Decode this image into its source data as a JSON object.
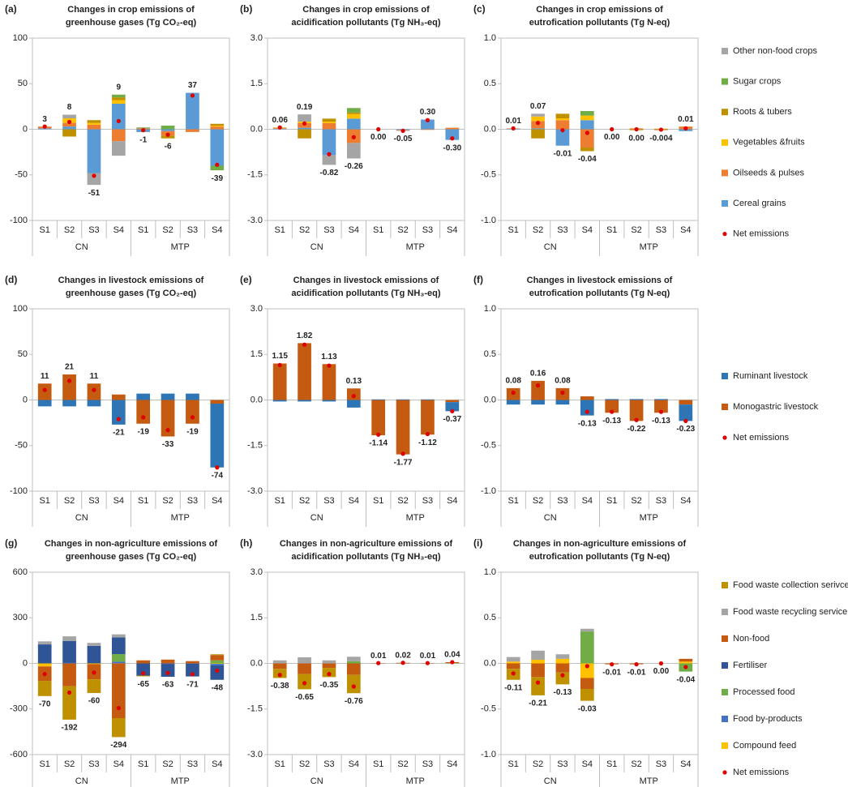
{
  "chart_data": [
    {
      "type": "bar",
      "series": [
        {
          "name": "Other non-food crops",
          "color": "#a5a5a5"
        },
        {
          "name": "Sugar crops",
          "color": "#70ad47"
        },
        {
          "name": "Roots & tubers",
          "color": "#bf9000"
        },
        {
          "name": "Vegetables &fruits",
          "color": "#ffc000"
        },
        {
          "name": "Oilseeds & pulses",
          "color": "#ed7d31"
        },
        {
          "name": "Cereal grains",
          "color": "#5b9bd5"
        }
      ],
      "net": {
        "name": "Net emissions",
        "color": "#e00000"
      },
      "panels": [
        {
          "label": "(a)",
          "title": [
            "Changes in crop emissions of",
            "greenhouse gases (Tg CO₂-eq)"
          ],
          "categories": [
            "S1",
            "S2",
            "S3",
            "S4",
            "S1",
            "S2",
            "S3",
            "S4"
          ],
          "groups": [
            "CN",
            "MTP"
          ],
          "ylim": [
            -100,
            100
          ],
          "yticks": [
            100,
            50,
            0,
            -50,
            -100
          ],
          "stacks": [
            [
              0,
              4,
              -13,
              -16,
              0,
              0,
              0,
              0
            ],
            [
              0,
              0,
              0,
              3,
              1,
              4,
              0,
              -5
            ],
            [
              0,
              -8,
              3,
              3,
              0,
              -3,
              0,
              2
            ],
            [
              0,
              5,
              2,
              4,
              0,
              0,
              0,
              1
            ],
            [
              2,
              4,
              5,
              -13,
              1,
              -5,
              -3,
              3
            ],
            [
              1,
              3,
              -48,
              28,
              -3,
              -2,
              40,
              -40
            ]
          ],
          "values": [
            3,
            8,
            -51,
            9,
            -1,
            -6,
            37,
            -39
          ]
        },
        {
          "label": "(b)",
          "title": [
            "Changes in crop emissions of",
            "acidification pollutants (Tg NH₃-eq)"
          ],
          "categories": [
            "S1",
            "S2",
            "S3",
            "S4",
            "S1",
            "S2",
            "S3",
            "S4"
          ],
          "groups": [
            "CN",
            "MTP"
          ],
          "ylim": [
            -3,
            3
          ],
          "yticks": [
            {
              "value": 3,
              "label": "3.0"
            },
            1.5,
            {
              "value": 0,
              "label": "0.0"
            },
            -1.5,
            {
              "value": -3,
              "label": "-3.0"
            }
          ],
          "stacks": [
            [
              0,
              0.24,
              -0.32,
              -0.51,
              0,
              0,
              0,
              0
            ],
            [
              0,
              0,
              0,
              0.15,
              0,
              0,
              0,
              0
            ],
            [
              0.01,
              -0.3,
              0.1,
              0.05,
              0,
              0,
              0,
              0
            ],
            [
              0.01,
              0.05,
              0.05,
              0.15,
              0,
              0,
              0,
              0
            ],
            [
              0.02,
              0.15,
              0.2,
              -0.45,
              0,
              -0.02,
              -0.02,
              0.05
            ],
            [
              0.02,
              0.05,
              -0.85,
              0.35,
              0,
              -0.03,
              0.32,
              -0.35
            ]
          ],
          "values": [
            0.06,
            0.19,
            -0.82,
            -0.26,
            0,
            -0.05,
            0.3,
            -0.3
          ],
          "value_labels": [
            "0.06",
            "0.19",
            "-0.82",
            "-0.26",
            "0.00",
            "-0.05",
            "0.30",
            "-0.30"
          ]
        },
        {
          "label": "(c)",
          "title": [
            "Changes in crop emissions of",
            "eutrofication pollutants (Tg N-eq)"
          ],
          "categories": [
            "S1",
            "S2",
            "S3",
            "S4",
            "S1",
            "S2",
            "S3",
            "S4"
          ],
          "groups": [
            "CN",
            "MTP"
          ],
          "ylim": [
            -1,
            1
          ],
          "yticks": [
            {
              "value": 1,
              "label": "1.0"
            },
            0.5,
            {
              "value": 0,
              "label": "0.0"
            },
            -0.5,
            {
              "value": -1,
              "label": "-1.0"
            }
          ],
          "stacks": [
            [
              0,
              0.03,
              0,
              0,
              0,
              0,
              0,
              0
            ],
            [
              0,
              0,
              0,
              0.05,
              0,
              0,
              0,
              0
            ],
            [
              0,
              -0.1,
              0.05,
              -0.04,
              0,
              -0.01,
              0.006,
              0
            ],
            [
              0,
              0.05,
              0.02,
              0.05,
              0,
              0,
              0,
              0
            ],
            [
              0.005,
              0.08,
              0.1,
              -0.2,
              0,
              0.01,
              -0.01,
              0.03
            ],
            [
              0.005,
              0.01,
              -0.18,
              0.1,
              0,
              0,
              0,
              -0.02
            ]
          ],
          "values": [
            0.01,
            0.07,
            -0.01,
            -0.04,
            0,
            0,
            -0.004,
            0.01
          ],
          "value_labels": [
            "0.01",
            "0.07",
            "-0.01",
            "-0.04",
            "0.00",
            "0.00",
            "-0.004",
            "0.01"
          ]
        }
      ]
    },
    {
      "type": "bar",
      "series": [
        {
          "name": "Ruminant livestock",
          "color": "#2e75b6"
        },
        {
          "name": "Monogastric livestock",
          "color": "#c55a11"
        }
      ],
      "net": {
        "name": "Net emissions",
        "color": "#e00000"
      },
      "panels": [
        {
          "label": "(d)",
          "title": [
            "Changes in livestock emissions of",
            "greenhouse gases (Tg CO₂-eq)"
          ],
          "categories": [
            "S1",
            "S2",
            "S3",
            "S4",
            "S1",
            "S2",
            "S3",
            "S4"
          ],
          "groups": [
            "CN",
            "MTP"
          ],
          "ylim": [
            -100,
            100
          ],
          "yticks": [
            100,
            50,
            0,
            -50,
            -100
          ],
          "stacks": [
            [
              -7,
              -7,
              -7,
              -27,
              7,
              7,
              7,
              -70
            ],
            [
              18,
              28,
              18,
              6,
              -26,
              -40,
              -26,
              -4
            ]
          ],
          "values": [
            11,
            21,
            11,
            -21,
            -19,
            -33,
            -19,
            -74
          ]
        },
        {
          "label": "(e)",
          "title": [
            "Changes in livestock emissions of",
            "acidification pollutants (Tg NH₃-eq)"
          ],
          "categories": [
            "S1",
            "S2",
            "S3",
            "S4",
            "S1",
            "S2",
            "S3",
            "S4"
          ],
          "groups": [
            "CN",
            "MTP"
          ],
          "ylim": [
            -3,
            3
          ],
          "yticks": [
            {
              "value": 3,
              "label": "3.0"
            },
            1.5,
            {
              "value": 0,
              "label": "0.0"
            },
            -1.5,
            {
              "value": -3,
              "label": "-3.0"
            }
          ],
          "stacks": [
            [
              -0.05,
              -0.05,
              -0.05,
              -0.25,
              0.02,
              0.02,
              0.02,
              -0.3
            ],
            [
              1.2,
              1.87,
              1.18,
              0.38,
              -1.16,
              -1.79,
              -1.14,
              -0.07
            ]
          ],
          "values": [
            1.15,
            1.82,
            1.13,
            0.13,
            -1.14,
            -1.77,
            -1.12,
            -0.37
          ]
        },
        {
          "label": "(f)",
          "title": [
            "Changes in livestock emissions of",
            "eutrofication pollutants (Tg N-eq)"
          ],
          "categories": [
            "S1",
            "S2",
            "S3",
            "S4",
            "S1",
            "S2",
            "S3",
            "S4"
          ],
          "groups": [
            "CN",
            "MTP"
          ],
          "ylim": [
            -1,
            1
          ],
          "yticks": [
            {
              "value": 1,
              "label": "1.0"
            },
            0.5,
            {
              "value": 0,
              "label": "0.0"
            },
            -0.5,
            {
              "value": -1,
              "label": "-1.0"
            }
          ],
          "stacks": [
            [
              -0.05,
              -0.05,
              -0.05,
              -0.17,
              0.01,
              0.01,
              0.01,
              -0.18
            ],
            [
              0.13,
              0.21,
              0.13,
              0.04,
              -0.14,
              -0.23,
              -0.14,
              -0.05
            ]
          ],
          "values": [
            0.08,
            0.16,
            0.08,
            -0.13,
            -0.13,
            -0.22,
            -0.13,
            -0.23
          ]
        }
      ]
    },
    {
      "type": "bar",
      "series": [
        {
          "name": "Food waste collection serivce",
          "color": "#bf9000"
        },
        {
          "name": "Food waste recycling service",
          "color": "#a5a5a5"
        },
        {
          "name": "Non-food",
          "color": "#c55a11"
        },
        {
          "name": "Fertiliser",
          "color": "#2f5597"
        },
        {
          "name": "Processed food",
          "color": "#70ad47"
        },
        {
          "name": "Food by-products",
          "color": "#4472c4"
        },
        {
          "name": "Compound feed",
          "color": "#ffc000"
        }
      ],
      "net": {
        "name": "Net emissions",
        "color": "#e00000"
      },
      "panels": [
        {
          "label": "(g)",
          "title": [
            "Changes in non-agriculture emissions of",
            "greenhouse gases (Tg CO₂-eq)"
          ],
          "categories": [
            "S1",
            "S2",
            "S3",
            "S4",
            "S1",
            "S2",
            "S3",
            "S4"
          ],
          "groups": [
            "CN",
            "MTP"
          ],
          "ylim": [
            -600,
            600
          ],
          "yticks": [
            600,
            300,
            0,
            -300,
            -600
          ],
          "stacks": [
            [
              -100,
              -220,
              -90,
              -125,
              -5,
              0,
              0,
              5
            ],
            [
              20,
              30,
              20,
              20,
              0,
              0,
              0,
              0
            ],
            [
              -95,
              -150,
              -100,
              -360,
              20,
              25,
              15,
              35
            ],
            [
              125,
              145,
              115,
              110,
              -80,
              -85,
              -85,
              -95
            ],
            [
              0,
              0,
              0,
              50,
              0,
              0,
              0,
              20
            ],
            [
              0,
              3,
              0,
              10,
              0,
              -3,
              -1,
              -10
            ],
            [
              -20,
              0,
              -5,
              1,
              0,
              0,
              0,
              -3
            ]
          ],
          "values": [
            -70,
            -192,
            -60,
            -294,
            -65,
            -63,
            -71,
            -48
          ]
        },
        {
          "label": "(h)",
          "title": [
            "Changes in non-agriculture emissions of",
            "acidification pollutants (Tg NH₃-eq)"
          ],
          "categories": [
            "S1",
            "S2",
            "S3",
            "S4",
            "S1",
            "S2",
            "S3",
            "S4"
          ],
          "groups": [
            "CN",
            "MTP"
          ],
          "ylim": [
            -3,
            3
          ],
          "yticks": [
            {
              "value": 3,
              "label": "3.0"
            },
            1.5,
            {
              "value": 0,
              "label": "0.0"
            },
            -1.5,
            {
              "value": -3,
              "label": "-3.0"
            }
          ],
          "stacks": [
            [
              -0.3,
              -0.5,
              -0.3,
              -0.6,
              0,
              0,
              0,
              0
            ],
            [
              0.1,
              0.2,
              0.1,
              0.15,
              0,
              0,
              0,
              0
            ],
            [
              -0.18,
              -0.35,
              -0.15,
              -0.38,
              0.01,
              0.02,
              0.01,
              0.03
            ],
            [
              0,
              0,
              0,
              0,
              0,
              0,
              0,
              0
            ],
            [
              0,
              0,
              0,
              0.07,
              0,
              0,
              0,
              0.01
            ],
            [
              0,
              0,
              0,
              0,
              0,
              0,
              0,
              0
            ],
            [
              0,
              0,
              0,
              0,
              0,
              0,
              0,
              0
            ]
          ],
          "values": [
            -0.38,
            -0.65,
            -0.35,
            -0.76,
            0.01,
            0.02,
            0.01,
            0.04
          ]
        },
        {
          "label": "(i)",
          "title": [
            "Changes in non-agriculture emissions of",
            "eutrofication pollutants (Tg N-eq)"
          ],
          "categories": [
            "S1",
            "S2",
            "S3",
            "S4",
            "S1",
            "S2",
            "S3",
            "S4"
          ],
          "groups": [
            "CN",
            "MTP"
          ],
          "ylim": [
            -1,
            1
          ],
          "yticks": [
            {
              "value": 1,
              "label": "1.0"
            },
            0.5,
            {
              "value": 0,
              "label": "0.0"
            },
            -0.5,
            {
              "value": -1,
              "label": "-1.0"
            }
          ],
          "stacks": [
            [
              -0.12,
              -0.2,
              -0.13,
              -0.13,
              0,
              0,
              0,
              0
            ],
            [
              0.05,
              0.1,
              0.05,
              0.03,
              0,
              0,
              0,
              0
            ],
            [
              -0.06,
              -0.15,
              -0.1,
              -0.12,
              -0.01,
              -0.01,
              0,
              0.03
            ],
            [
              0,
              0,
              0,
              0,
              0,
              0,
              0,
              0
            ],
            [
              0,
              0,
              0,
              0.35,
              0,
              0,
              0,
              -0.09
            ],
            [
              0,
              0,
              0,
              0,
              0,
              0,
              0,
              0
            ],
            [
              0.02,
              0.04,
              0.05,
              -0.16,
              0,
              0,
              0,
              0.02
            ]
          ],
          "values": [
            -0.11,
            -0.21,
            -0.13,
            -0.03,
            -0.01,
            -0.01,
            0,
            -0.04
          ],
          "value_labels": [
            "-0.11",
            "-0.21",
            "-0.13",
            "-0.03",
            "-0.01",
            "-0.01",
            "0.00",
            "-0.04"
          ]
        }
      ]
    }
  ]
}
